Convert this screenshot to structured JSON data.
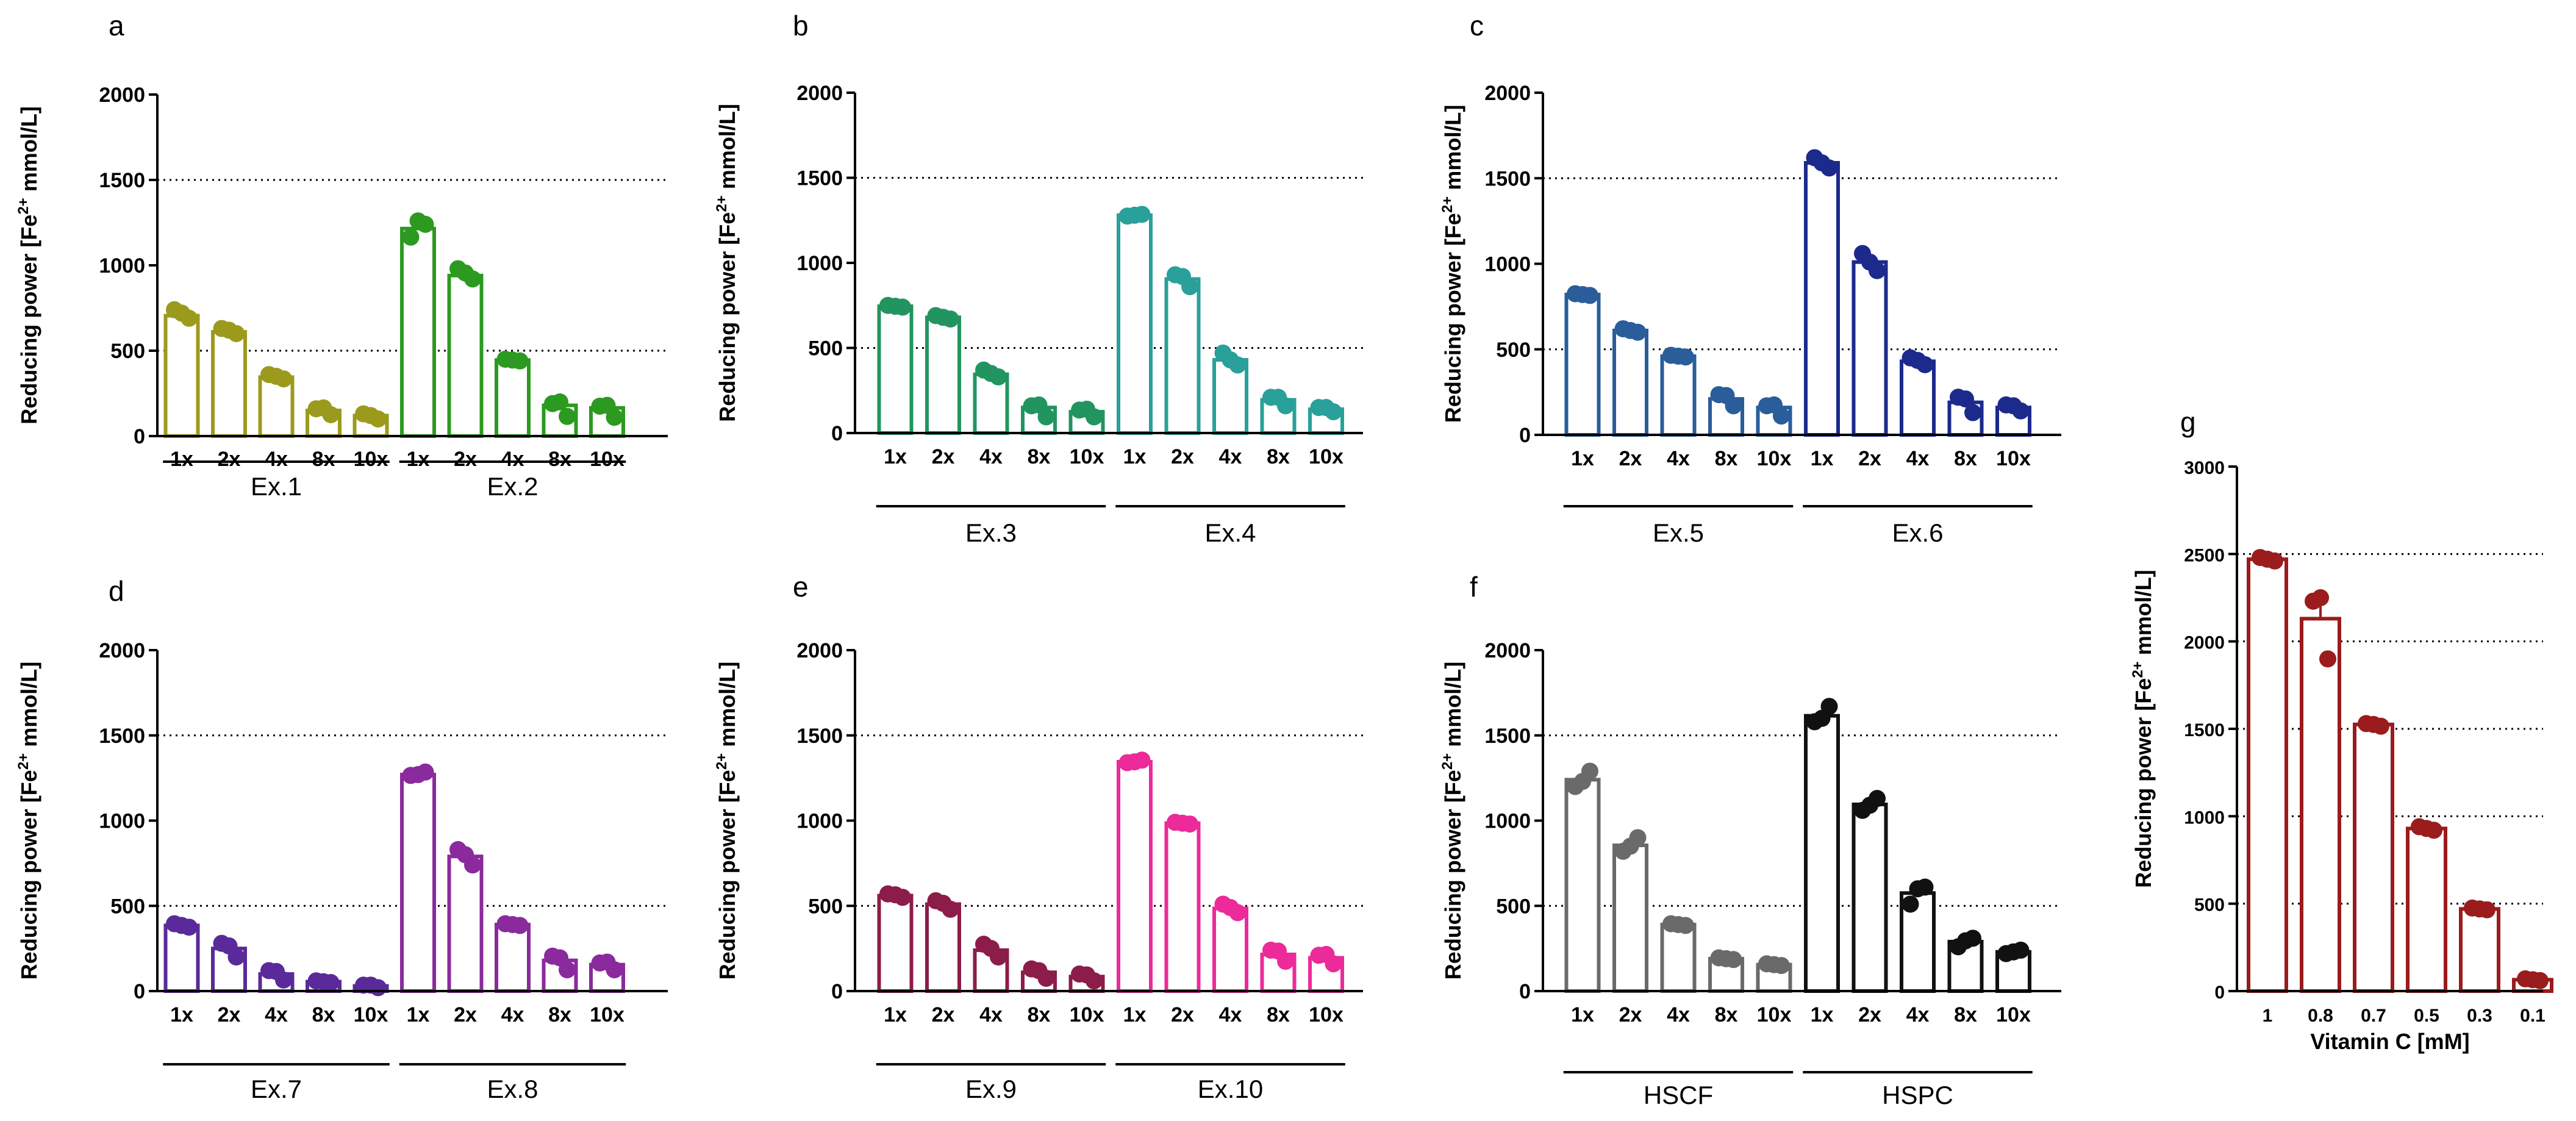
{
  "colors": {
    "ex1": "#9c9a1c",
    "ex2": "#2c9a20",
    "ex3": "#229460",
    "ex4": "#2aa09a",
    "ex5": "#2a5d9a",
    "ex6": "#1c2a8c",
    "ex7": "#5a2a9a",
    "ex8": "#8a2a9c",
    "ex9": "#8c1c4a",
    "ex10": "#ec2a9a",
    "hscf": "#6a6a6a",
    "hspc": "#111111",
    "vitc": "#9a1c1c"
  },
  "chart_data": [
    {
      "type": "bar",
      "panel": "a",
      "ylabel": "Reducing power [Fe2+ mmol/L]",
      "ylabel_parts": [
        "Reducing power [Fe",
        "2+",
        " mmol/L]"
      ],
      "ylim": [
        0,
        2000
      ],
      "yticks": [
        "0",
        "500",
        "1000",
        "1500",
        "2000"
      ],
      "gridlines": [
        500,
        1500
      ],
      "categories": [
        "1x",
        "2x",
        "4x",
        "8x",
        "10x",
        "1x",
        "2x",
        "4x",
        "8x",
        "10x"
      ],
      "groups": [
        {
          "label": "Ex.1",
          "color_key": "ex1",
          "values": [
            705,
            610,
            345,
            150,
            120
          ],
          "points": [
            [
              740,
              690,
              720
            ],
            [
              630,
              600,
              620
            ],
            [
              360,
              335,
              350
            ],
            [
              160,
              125,
              165
            ],
            [
              130,
              100,
              120
            ]
          ]
        },
        {
          "label": "Ex.2",
          "color_key": "ex2",
          "values": [
            1215,
            940,
            445,
            180,
            165
          ],
          "points": [
            [
              1165,
              1240,
              1260
            ],
            [
              980,
              920,
              955
            ],
            [
              450,
              440,
              445
            ],
            [
              190,
              115,
              200
            ],
            [
              175,
              110,
              180
            ]
          ]
        }
      ]
    },
    {
      "type": "bar",
      "panel": "b",
      "ylabel": "Reducing power [Fe2+ mmol/L]",
      "ylabel_parts": [
        "Reducing power [Fe",
        "2+",
        " mmol/L]"
      ],
      "ylim": [
        0,
        2000
      ],
      "yticks": [
        "0",
        "500",
        "1000",
        "1500",
        "2000"
      ],
      "gridlines": [
        500,
        1500
      ],
      "categories": [
        "1x",
        "2x",
        "4x",
        "8x",
        "10x",
        "1x",
        "2x",
        "4x",
        "8x",
        "10x"
      ],
      "groups": [
        {
          "label": "Ex.3",
          "color_key": "ex3",
          "values": [
            745,
            680,
            345,
            150,
            125
          ],
          "points": [
            [
              750,
              740,
              745
            ],
            [
              690,
              670,
              680
            ],
            [
              370,
              330,
              350
            ],
            [
              160,
              95,
              165
            ],
            [
              135,
              95,
              140
            ]
          ]
        },
        {
          "label": "Ex.4",
          "color_key": "ex4",
          "values": [
            1280,
            905,
            430,
            195,
            140
          ],
          "points": [
            [
              1275,
              1285,
              1280
            ],
            [
              930,
              860,
              920
            ],
            [
              470,
              400,
              430
            ],
            [
              210,
              160,
              210
            ],
            [
              150,
              125,
              150
            ]
          ]
        }
      ]
    },
    {
      "type": "bar",
      "panel": "c",
      "ylabel": "Reducing power [Fe2+ mmol/L]",
      "ylabel_parts": [
        "Reducing power [Fe",
        "2+",
        " mmol/L]"
      ],
      "ylim": [
        0,
        2000
      ],
      "yticks": [
        "0",
        "500",
        "1000",
        "1500",
        "2000"
      ],
      "gridlines": [
        500,
        1500
      ],
      "categories": [
        "1x",
        "2x",
        "4x",
        "8x",
        "10x",
        "1x",
        "2x",
        "4x",
        "8x",
        "10x"
      ],
      "groups": [
        {
          "label": "Ex.5",
          "color_key": "ex5",
          "values": [
            820,
            610,
            460,
            210,
            160
          ],
          "points": [
            [
              825,
              815,
              820
            ],
            [
              620,
              600,
              610
            ],
            [
              465,
              455,
              460
            ],
            [
              235,
              170,
              230
            ],
            [
              170,
              110,
              175
            ]
          ]
        },
        {
          "label": "Ex.6",
          "color_key": "ex6",
          "values": [
            1590,
            1010,
            430,
            190,
            160
          ],
          "points": [
            [
              1620,
              1560,
              1590
            ],
            [
              1060,
              960,
              1010
            ],
            [
              450,
              410,
              435
            ],
            [
              220,
              130,
              210
            ],
            [
              175,
              140,
              170
            ]
          ]
        }
      ]
    },
    {
      "type": "bar",
      "panel": "d",
      "ylabel": "Reducing power [Fe2+ mmol/L]",
      "ylabel_parts": [
        "Reducing power [Fe",
        "2+",
        " mmol/L]"
      ],
      "ylim": [
        0,
        2000
      ],
      "yticks": [
        "0",
        "500",
        "1000",
        "1500",
        "2000"
      ],
      "gridlines": [
        500,
        1500
      ],
      "categories": [
        "1x",
        "2x",
        "4x",
        "8x",
        "10x",
        "1x",
        "2x",
        "4x",
        "8x",
        "10x"
      ],
      "groups": [
        {
          "label": "Ex.7",
          "color_key": "ex7",
          "values": [
            385,
            250,
            100,
            55,
            30
          ],
          "points": [
            [
              395,
              375,
              385
            ],
            [
              280,
              200,
              265
            ],
            [
              120,
              65,
              115
            ],
            [
              60,
              50,
              55
            ],
            [
              35,
              20,
              35
            ]
          ]
        },
        {
          "label": "Ex.8",
          "color_key": "ex8",
          "values": [
            1270,
            790,
            390,
            180,
            155
          ],
          "points": [
            [
              1265,
              1285,
              1270
            ],
            [
              830,
              740,
              800
            ],
            [
              395,
              385,
              390
            ],
            [
              205,
              125,
              195
            ],
            [
              165,
              125,
              170
            ]
          ]
        }
      ]
    },
    {
      "type": "bar",
      "panel": "e",
      "ylabel": "Reducing power [Fe2+ mmol/L]",
      "ylabel_parts": [
        "Reducing power [Fe",
        "2+",
        " mmol/L]"
      ],
      "ylim": [
        0,
        2000
      ],
      "yticks": [
        "0",
        "500",
        "1000",
        "1500",
        "2000"
      ],
      "gridlines": [
        500,
        1500
      ],
      "categories": [
        "1x",
        "2x",
        "4x",
        "8x",
        "10x",
        "1x",
        "2x",
        "4x",
        "8x",
        "10x"
      ],
      "groups": [
        {
          "label": "Ex.9",
          "color_key": "ex9",
          "values": [
            560,
            510,
            240,
            110,
            85
          ],
          "points": [
            [
              570,
              550,
              565
            ],
            [
              530,
              480,
              515
            ],
            [
              275,
              200,
              250
            ],
            [
              130,
              75,
              120
            ],
            [
              100,
              60,
              95
            ]
          ]
        },
        {
          "label": "Ex.10",
          "color_key": "ex10",
          "values": [
            1345,
            985,
            485,
            215,
            195
          ],
          "points": [
            [
              1340,
              1355,
              1345
            ],
            [
              990,
              980,
              985
            ],
            [
              510,
              460,
              490
            ],
            [
              240,
              175,
              235
            ],
            [
              210,
              160,
              215
            ]
          ]
        }
      ]
    },
    {
      "type": "bar",
      "panel": "f",
      "ylabel": "Reducing power [Fe2+ mmol/L]",
      "ylabel_parts": [
        "Reducing power [Fe",
        "2+",
        " mmol/L]"
      ],
      "ylim": [
        0,
        2000
      ],
      "yticks": [
        "0",
        "500",
        "1000",
        "1500",
        "2000"
      ],
      "gridlines": [
        500,
        1500
      ],
      "categories": [
        "1x",
        "2x",
        "4x",
        "8x",
        "10x",
        "1x",
        "2x",
        "4x",
        "8x",
        "10x"
      ],
      "groups": [
        {
          "label": "HSCF",
          "color_key": "hscf",
          "values": [
            1240,
            855,
            390,
            190,
            155
          ],
          "points": [
            [
              1200,
              1290,
              1230
            ],
            [
              820,
              900,
              850
            ],
            [
              395,
              385,
              390
            ],
            [
              195,
              185,
              190
            ],
            [
              160,
              150,
              155
            ]
          ]
        },
        {
          "label": "HSPC",
          "color_key": "hspc",
          "values": [
            1615,
            1095,
            575,
            290,
            230
          ],
          "points": [
            [
              1580,
              1670,
              1600
            ],
            [
              1060,
              1130,
              1090
            ],
            [
              510,
              610,
              600
            ],
            [
              260,
              310,
              295
            ],
            [
              220,
              240,
              230
            ]
          ]
        }
      ]
    },
    {
      "type": "bar",
      "panel": "g",
      "ylabel": "Reducing power [Fe2+ mmol/L]",
      "ylabel_parts": [
        "Reducing power [Fe",
        "2+",
        " mmol/L]"
      ],
      "xlabel": "Vitamin C [mM]",
      "ylim": [
        0,
        3000
      ],
      "yticks": [
        "0",
        "500",
        "1000",
        "1500",
        "2000",
        "2500",
        "3000"
      ],
      "gridlines": [
        500,
        1000,
        1500,
        2000,
        2500
      ],
      "categories": [
        "1",
        "0.8",
        "0.7",
        "0.5",
        "0.3",
        "0.1"
      ],
      "groups": [
        {
          "label": "",
          "color_key": "vitc",
          "values": [
            2470,
            2130,
            1525,
            930,
            470,
            65
          ],
          "points": [
            [
              2480,
              2460,
              2470
            ],
            [
              2230,
              1900,
              2250
            ],
            [
              1530,
              1515,
              1525
            ],
            [
              940,
              920,
              930
            ],
            [
              475,
              465,
              470
            ],
            [
              70,
              60,
              65
            ]
          ]
        }
      ],
      "errors_high": [
        2490,
        2250,
        1540,
        950,
        485,
        80
      ]
    }
  ]
}
